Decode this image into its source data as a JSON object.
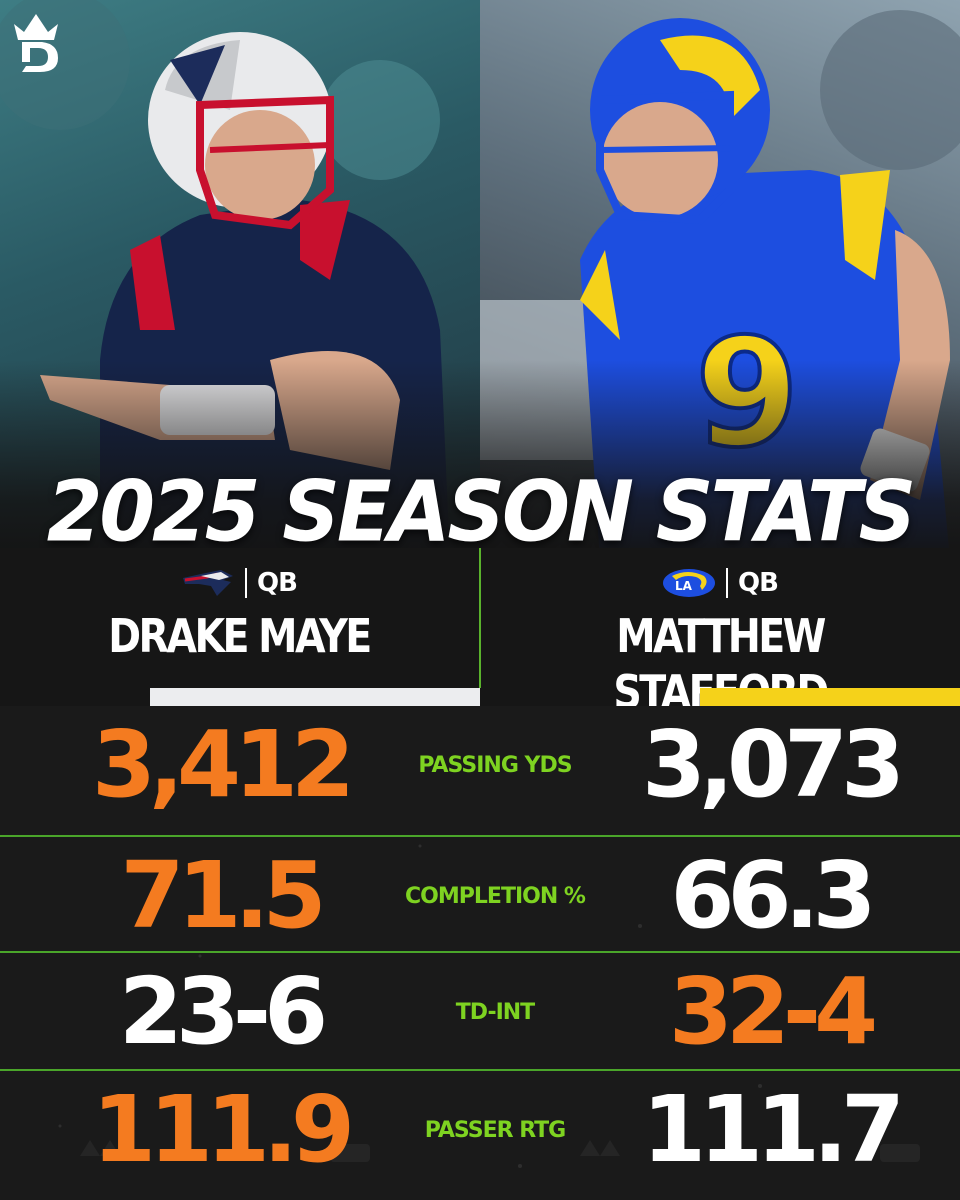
{
  "headline": "2025 SEASON STATS",
  "logo_icon": "draftkings-crown-icon",
  "colors": {
    "accent_green": "#7ed321",
    "highlight_orange": "#f47b20",
    "background": "#141414"
  },
  "players": [
    {
      "position": "QB",
      "name": "DRAKE MAYE",
      "team_icon": "patriots-logo-icon"
    },
    {
      "position": "QB",
      "name": "MATTHEW STAFFORD",
      "team_icon": "rams-logo-icon"
    }
  ],
  "stats": [
    {
      "label": "PASSING YDS",
      "left": "3,412",
      "right": "3,073",
      "leader": "left"
    },
    {
      "label": "COMPLETION %",
      "left": "71.5",
      "right": "66.3",
      "leader": "left"
    },
    {
      "label": "TD-INT",
      "left": "23-6",
      "right": "32-4",
      "leader": "right"
    },
    {
      "label": "PASSER RTG",
      "left": "111.9",
      "right": "111.7",
      "leader": "left"
    }
  ]
}
